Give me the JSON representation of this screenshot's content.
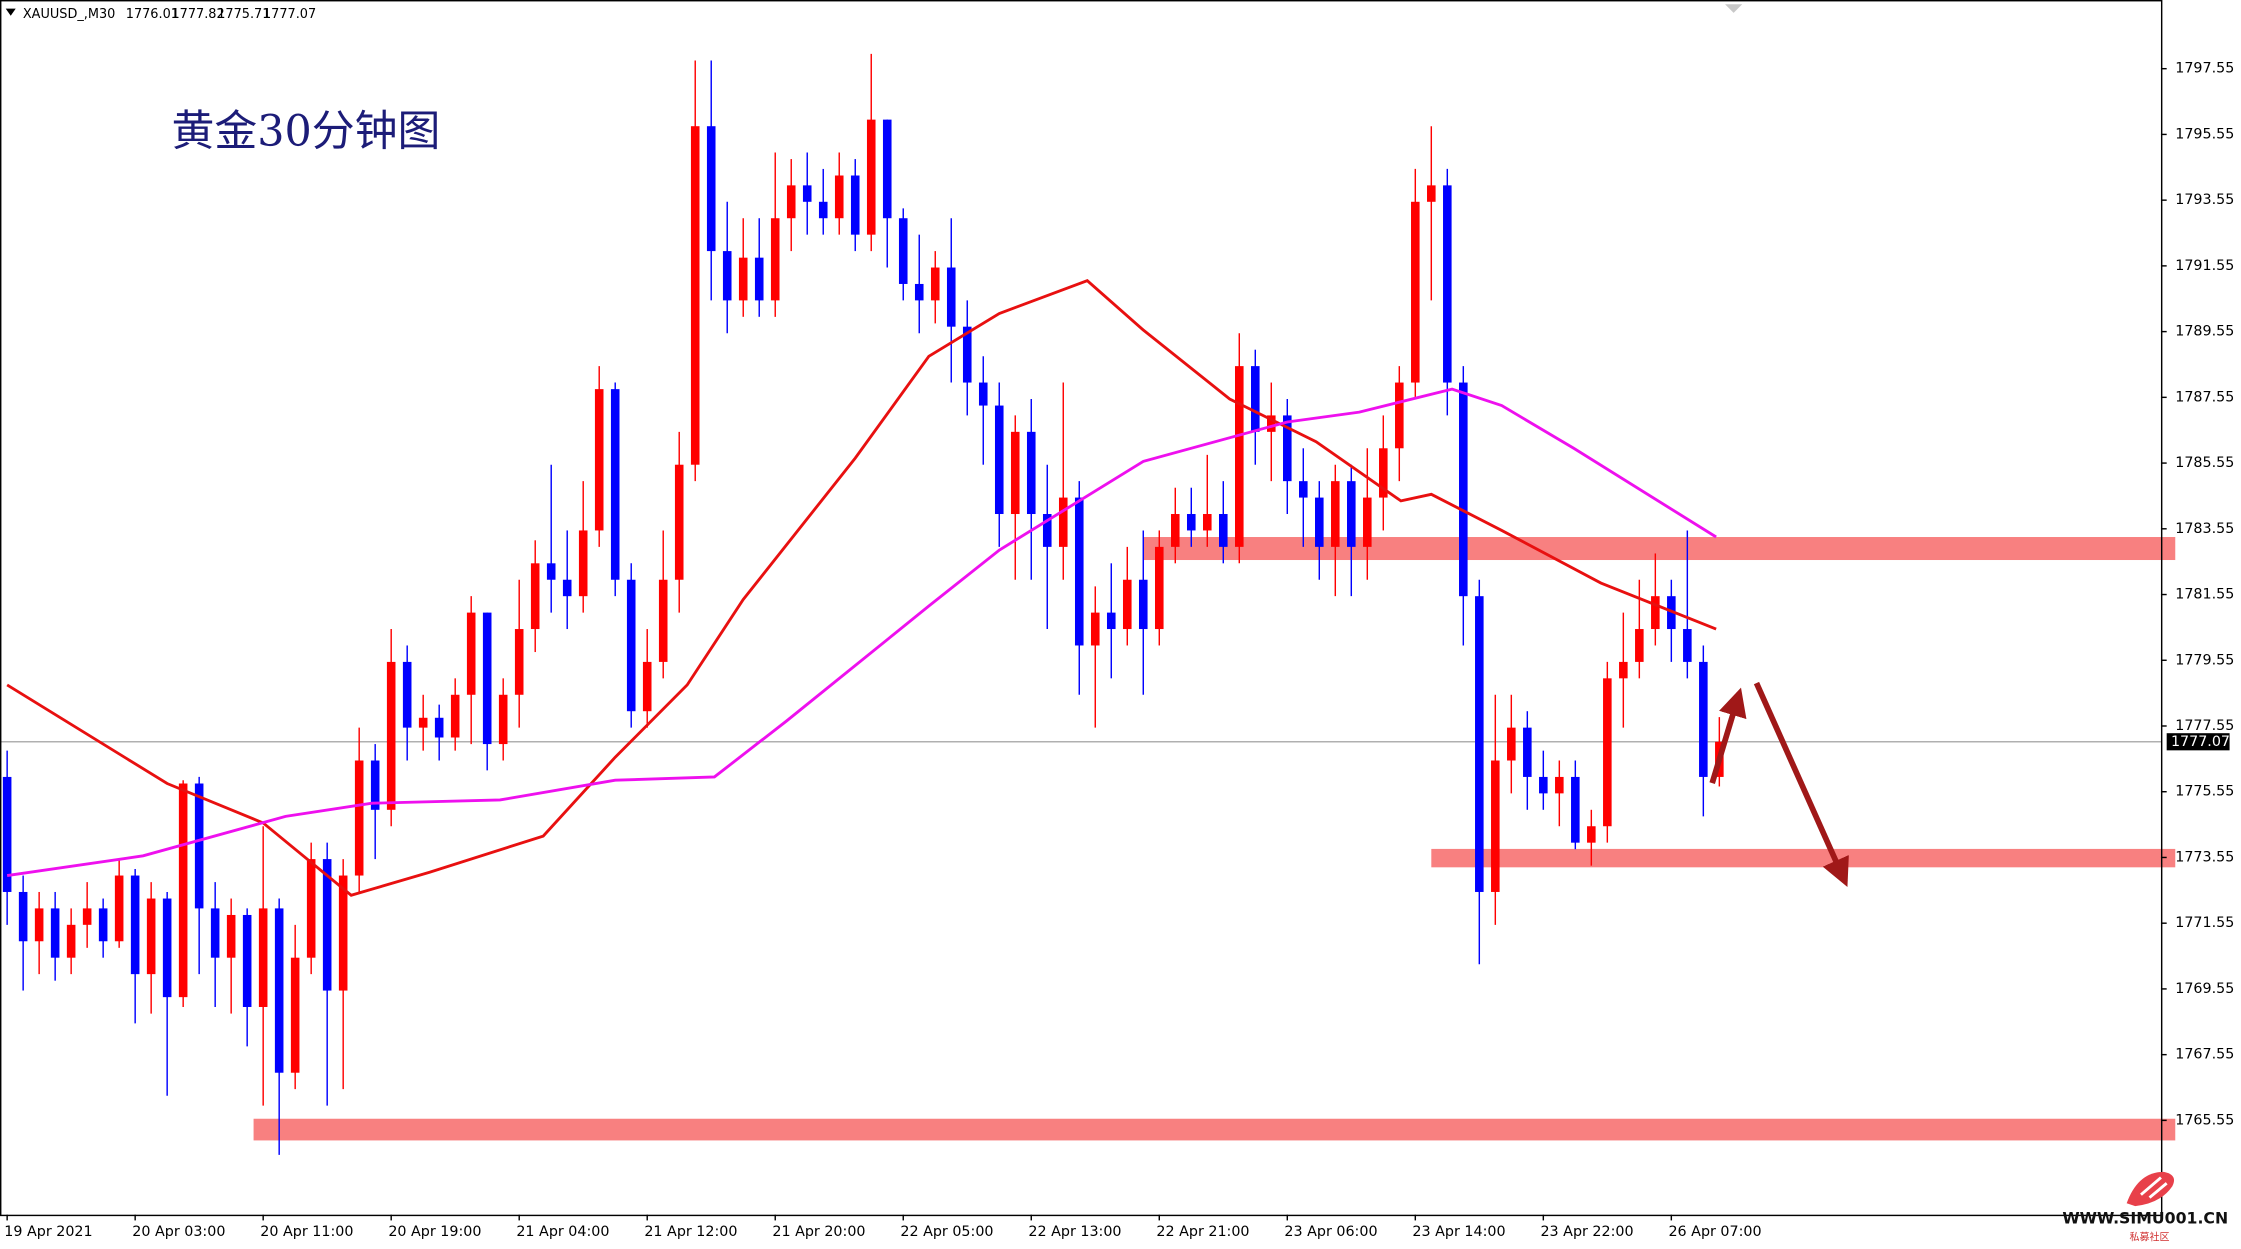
{
  "chart_data": {
    "type": "candlestick",
    "title": "黄金30分钟图",
    "symbol": "XAUUSD_,M30",
    "quote": [
      1776.01,
      1777.82,
      1775.71,
      1777.07
    ],
    "categories": [
      "19 Apr 2021",
      null,
      null,
      null,
      null,
      null,
      null,
      null,
      "20 Apr 03:00",
      null,
      null,
      null,
      null,
      null,
      null,
      null,
      "20 Apr 11:00",
      null,
      null,
      null,
      null,
      null,
      null,
      null,
      "20 Apr 19:00",
      null,
      null,
      null,
      null,
      null,
      null,
      null,
      "21 Apr 04:00",
      null,
      null,
      null,
      null,
      null,
      null,
      null,
      "21 Apr 12:00",
      null,
      null,
      null,
      null,
      null,
      null,
      null,
      "21 Apr 20:00",
      null,
      null,
      null,
      null,
      null,
      null,
      null,
      "22 Apr 05:00",
      null,
      null,
      null,
      null,
      null,
      null,
      null,
      "22 Apr 13:00",
      null,
      null,
      null,
      null,
      null,
      null,
      null,
      "22 Apr 21:00",
      null,
      null,
      null,
      null,
      null,
      null,
      null,
      "23 Apr 06:00",
      null,
      null,
      null,
      null,
      null,
      null,
      null,
      "23 Apr 14:00",
      null,
      null,
      null,
      null,
      null,
      null,
      null,
      "23 Apr 22:00",
      null,
      null,
      null,
      null,
      null,
      null,
      null,
      "26 Apr 07:00",
      null,
      null,
      null
    ],
    "open": [
      1776,
      1772.5,
      1771,
      1772,
      1770.5,
      1771.5,
      1772,
      1771,
      1773,
      1770,
      1772.3,
      1769.3,
      1775.8,
      1772,
      1770.5,
      1771.8,
      1769,
      1772,
      1767,
      1770.5,
      1773.5,
      1769.5,
      1773,
      1776.5,
      1775,
      1779.5,
      1777.5,
      1777.8,
      1777.2,
      1778.5,
      1781,
      1777,
      1778.5,
      1780.5,
      1782.5,
      1782,
      1781.5,
      1783.5,
      1787.8,
      1782,
      1778,
      1779.5,
      1782,
      1785.5,
      1795.8,
      1792,
      1790.5,
      1791.8,
      1790.5,
      1793,
      1794,
      1793.5,
      1793,
      1794.3,
      1792.5,
      1796,
      1793,
      1791,
      1790.5,
      1791.5,
      1789.7,
      1788,
      1787.3,
      1784,
      1786.5,
      1784,
      1783,
      1784.5,
      1780,
      1781,
      1780.5,
      1782,
      1780.5,
      1783,
      1784,
      1783.5,
      1784,
      1783,
      1788.5,
      1786.5,
      1787,
      1785,
      1784.5,
      1783,
      1785,
      1783,
      1784.5,
      1786,
      1788,
      1793.5,
      1794,
      1788,
      1781.5,
      1772.5,
      1776.5,
      1777.5,
      1776,
      1775.5,
      1776,
      1774,
      1774.5,
      1779,
      1779.5,
      1780.5,
      1781.5,
      1780.5,
      1779.5,
      1776
    ],
    "high": [
      1776.8,
      1773,
      1772.5,
      1772.5,
      1772,
      1772.8,
      1772.3,
      1773.5,
      1773.2,
      1772.8,
      1772.5,
      1775.9,
      1776,
      1772.8,
      1772.3,
      1772,
      1774.5,
      1772.3,
      1771.5,
      1774,
      1774,
      1773.5,
      1777.5,
      1777,
      1780.5,
      1780,
      1778.5,
      1778.2,
      1779,
      1781.5,
      1781,
      1779,
      1782,
      1783.2,
      1785.5,
      1783.5,
      1785,
      1788.5,
      1788,
      1782.5,
      1780.5,
      1783.5,
      1786.5,
      1797.8,
      1797.8,
      1793.5,
      1793,
      1793,
      1795,
      1794.8,
      1795,
      1794.5,
      1795,
      1794.8,
      1798,
      1796,
      1793.3,
      1792.5,
      1792,
      1793,
      1790.5,
      1788.8,
      1788,
      1787,
      1787.5,
      1785.5,
      1788,
      1785,
      1781.8,
      1782.5,
      1783,
      1783.5,
      1783.5,
      1784.8,
      1784.8,
      1785.8,
      1785,
      1789.5,
      1789,
      1788,
      1787.5,
      1786,
      1785,
      1785.5,
      1785.5,
      1786,
      1787,
      1788.5,
      1794.5,
      1795.8,
      1794.5,
      1788.5,
      1782,
      1778.5,
      1778.5,
      1778,
      1776.8,
      1776.5,
      1776.5,
      1775,
      1779.5,
      1781,
      1782,
      1782.8,
      1782,
      1783.5,
      1780,
      1777.82
    ],
    "low": [
      1771.5,
      1769.5,
      1770,
      1769.8,
      1770,
      1770.8,
      1770.5,
      1770.8,
      1768.5,
      1768.8,
      1766.3,
      1769,
      1770,
      1769,
      1768.8,
      1767.8,
      1766,
      1764.5,
      1766.5,
      1770,
      1766,
      1766.5,
      1772.5,
      1773.5,
      1774.5,
      1776.5,
      1776.8,
      1776.5,
      1776.8,
      1777,
      1776.2,
      1776.5,
      1777.5,
      1779.8,
      1781,
      1780.5,
      1781,
      1783,
      1781.5,
      1777.5,
      1777.5,
      1779,
      1781,
      1785,
      1790.5,
      1789.5,
      1790,
      1790,
      1790,
      1792,
      1792.5,
      1792.5,
      1792.5,
      1792,
      1792,
      1791.5,
      1790.5,
      1789.5,
      1789.8,
      1788,
      1787,
      1785.5,
      1783,
      1782,
      1782,
      1780.5,
      1782,
      1778.5,
      1777.5,
      1779,
      1780,
      1778.5,
      1780,
      1782.5,
      1783,
      1783,
      1782.5,
      1782.5,
      1785.5,
      1785,
      1784,
      1783,
      1782,
      1781.5,
      1781.5,
      1782,
      1783.5,
      1785,
      1787.5,
      1790.5,
      1787,
      1780,
      1770.3,
      1771.5,
      1775.5,
      1775,
      1775,
      1774.5,
      1773.8,
      1773.3,
      1774,
      1777.5,
      1779,
      1780,
      1779.5,
      1779,
      1774.8,
      1775.71
    ],
    "close": [
      1772.5,
      1771,
      1772,
      1770.5,
      1771.5,
      1772,
      1771,
      1773,
      1770,
      1772.3,
      1769.3,
      1775.8,
      1772,
      1770.5,
      1771.8,
      1769,
      1772,
      1767,
      1770.5,
      1773.5,
      1769.5,
      1773,
      1776.5,
      1775,
      1779.5,
      1777.5,
      1777.8,
      1777.2,
      1778.5,
      1781,
      1777,
      1778.5,
      1780.5,
      1782.5,
      1782,
      1781.5,
      1783.5,
      1787.8,
      1782,
      1778,
      1779.5,
      1782,
      1785.5,
      1795.8,
      1792,
      1790.5,
      1791.8,
      1790.5,
      1793,
      1794,
      1793.5,
      1793,
      1794.3,
      1792.5,
      1796,
      1793,
      1791,
      1790.5,
      1791.5,
      1789.7,
      1788,
      1787.3,
      1784,
      1786.5,
      1784,
      1783,
      1784.5,
      1780,
      1781,
      1780.5,
      1782,
      1780.5,
      1783,
      1784,
      1783.5,
      1784,
      1783,
      1788.5,
      1786.5,
      1787,
      1785,
      1784.5,
      1783,
      1785,
      1783,
      1784.5,
      1786,
      1788,
      1793.5,
      1794,
      1788,
      1781.5,
      1772.5,
      1776.5,
      1777.5,
      1776,
      1775.5,
      1776,
      1774,
      1774.5,
      1779,
      1779.5,
      1780.5,
      1781.5,
      1780.5,
      1779.5,
      1776,
      1777.07
    ],
    "up_color": "#ff0000",
    "down_color": "#0000ff",
    "overlays": [
      {
        "color": "#e81010",
        "x": [
          0,
          10,
          16,
          21.5,
          26.4,
          33.5,
          38,
          42.5,
          46,
          53,
          57.6,
          62,
          67.5,
          71,
          76.4,
          81.8,
          87.1,
          89,
          93.4,
          99.6,
          106.8
        ],
        "values": [
          1778.8,
          1775.8,
          1774.6,
          1772.4,
          1773.1,
          1774.2,
          1776.6,
          1778.8,
          1781.4,
          1785.7,
          1788.8,
          1790.1,
          1791.1,
          1789.6,
          1787.5,
          1786.2,
          1784.4,
          1784.6,
          1783.5,
          1781.9,
          1780.5
        ]
      },
      {
        "color": "#ee10ee",
        "x": [
          0,
          8.5,
          17.4,
          22.8,
          30.8,
          38,
          44.2,
          48.7,
          57.6,
          62,
          71,
          80,
          84.5,
          90.3,
          93.4,
          97.9,
          106.8
        ],
        "values": [
          1773.0,
          1773.6,
          1774.8,
          1775.2,
          1775.3,
          1775.9,
          1776.0,
          1777.7,
          1781.2,
          1782.9,
          1785.6,
          1786.8,
          1787.1,
          1787.8,
          1787.3,
          1786.0,
          1783.3
        ]
      }
    ],
    "zones": [
      {
        "color": "#f88080",
        "from": 71,
        "ylim": [
          1782.6,
          1783.3
        ]
      },
      {
        "color": "#f88080",
        "from": 89,
        "ylim": [
          1773.25,
          1773.81
        ]
      },
      {
        "color": "#f88080",
        "from": 15.4,
        "ylim": [
          1764.94,
          1765.6
        ]
      }
    ],
    "last_price": 1777.07,
    "ylim": [
      1762.68,
      1799.64
    ],
    "yticks": [
      1765.55,
      1767.55,
      1769.55,
      1771.55,
      1773.55,
      1775.55,
      1777.55,
      1779.55,
      1781.55,
      1783.55,
      1785.55,
      1787.55,
      1789.55,
      1791.55,
      1793.55,
      1795.55,
      1797.55
    ],
    "watermark": "WWW.SIMU001.CN",
    "watermark_sub": "私募社区"
  }
}
